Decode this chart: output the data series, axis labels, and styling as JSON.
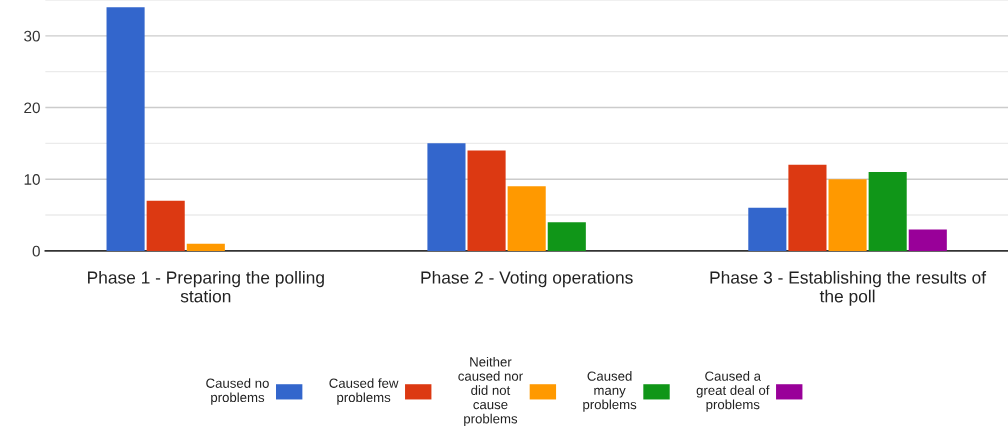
{
  "chart_data": {
    "type": "bar",
    "categories": [
      "Phase 1 - Preparing the polling station",
      "Phase 2 - Voting operations",
      "Phase 3 - Establishing the results of the poll"
    ],
    "series": [
      {
        "name": "Caused no problems",
        "color": "#3366cc",
        "values": [
          34,
          15,
          6
        ]
      },
      {
        "name": "Caused few problems",
        "color": "#dc3912",
        "values": [
          7,
          14,
          12
        ]
      },
      {
        "name": "Neither caused nor did not cause problems",
        "color": "#ff9900",
        "values": [
          1,
          9,
          10
        ]
      },
      {
        "name": "Caused many problems",
        "color": "#109618",
        "values": [
          0,
          4,
          11
        ]
      },
      {
        "name": "Caused a great deal of problems",
        "color": "#990099",
        "values": [
          0,
          0,
          3
        ]
      }
    ],
    "ylim": [
      0,
      35
    ],
    "yticks": [
      0,
      {
        "value": 5,
        "label": null
      },
      10,
      {
        "value": 15,
        "label": null
      },
      20,
      {
        "value": 25,
        "label": null
      },
      30,
      {
        "value": 35,
        "label": null
      }
    ],
    "grid": "y",
    "legend": "bottom"
  }
}
